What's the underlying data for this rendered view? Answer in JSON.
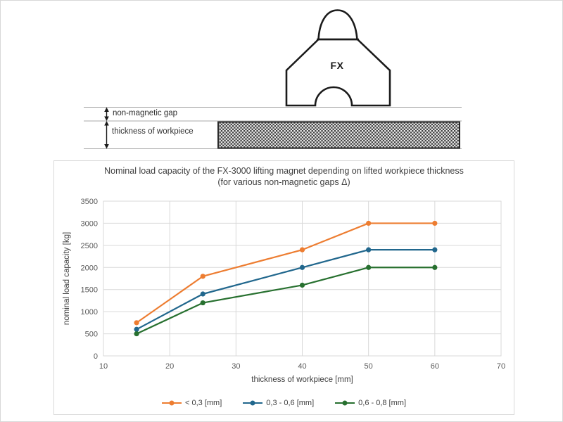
{
  "diagram": {
    "magnet_label": "FX",
    "gap_label": "non-magnetic gap",
    "thickness_label": "thickness of workpiece"
  },
  "chart": {
    "title_line1": "Nominal load capacity of the FX-3000 lifting magnet depending on lifted workpiece thickness",
    "title_line2": "(for various non-magnetic gaps Δ)"
  },
  "chart_data": {
    "type": "line",
    "title": "Nominal load capacity of the FX-3000 lifting magnet depending on lifted workpiece thickness (for various non-magnetic gaps Δ)",
    "xlabel": "thickness of workpiece [mm]",
    "ylabel": "nominal load capacity [kg]",
    "x": [
      15,
      25,
      40,
      50,
      60
    ],
    "series": [
      {
        "name": "< 0,3 [mm]",
        "color": "#ED7D31",
        "values": [
          750,
          1800,
          2400,
          3000,
          3000
        ]
      },
      {
        "name": "0,3 - 0,6 [mm]",
        "color": "#21678D",
        "values": [
          600,
          1400,
          2000,
          2400,
          2400
        ]
      },
      {
        "name": "0,6 - 0,8 [mm]",
        "color": "#27702F",
        "values": [
          500,
          1200,
          1600,
          2000,
          2000
        ]
      }
    ],
    "xlim": [
      10,
      70
    ],
    "ylim": [
      0,
      3500
    ],
    "xtick_step": 10,
    "ytick_step": 500,
    "grid": true,
    "legend_position": "bottom"
  },
  "colors": {
    "grid": "#D9D9D9",
    "tick_label": "#595959",
    "axis_title": "#404040",
    "diagram_line": "#a8a8a8",
    "diagram_ink": "#1a1a1a"
  }
}
